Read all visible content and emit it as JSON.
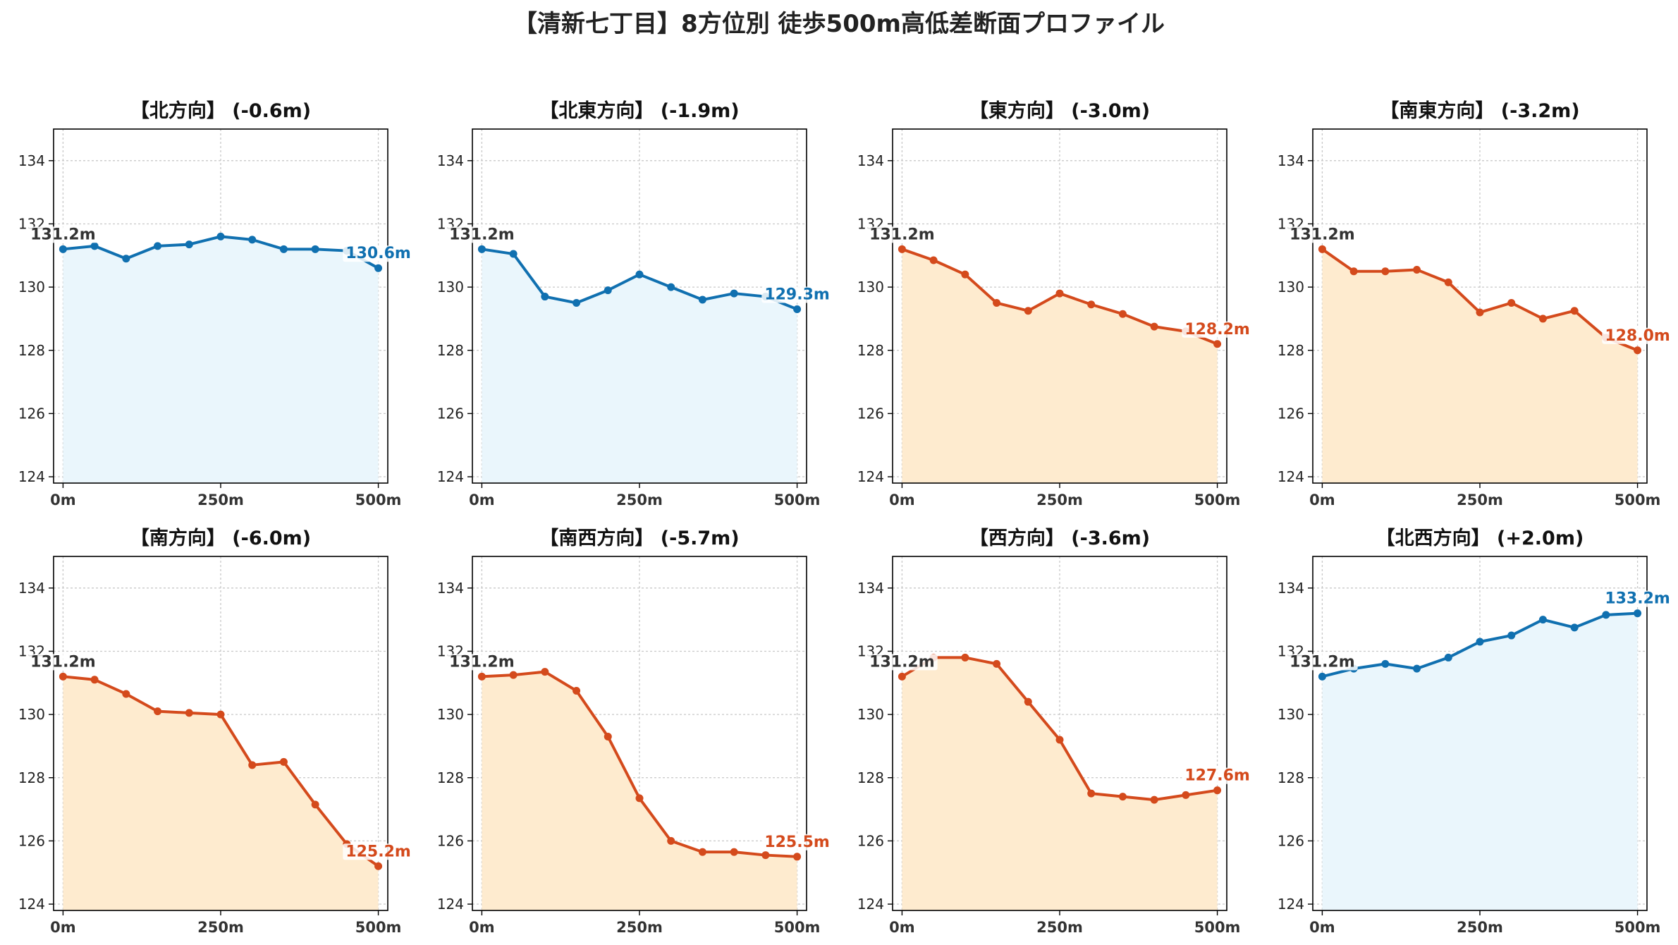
{
  "title": "【清新七丁目】8方位別 徒歩500m高低差断面プロファイル",
  "colors": {
    "up": "#1070b0",
    "down": "#d44a1c",
    "up_fill": "#eaf6fc",
    "down_fill": "#feebcf",
    "start_label": "#333333"
  },
  "chart_data": [
    {
      "type": "area",
      "title": "【北方向】 (-0.6m)",
      "x": [
        0,
        50,
        100,
        150,
        200,
        250,
        300,
        350,
        400,
        450,
        500
      ],
      "y": [
        131.2,
        131.3,
        130.9,
        131.3,
        131.35,
        131.6,
        131.5,
        131.2,
        131.2,
        131.15,
        130.6
      ],
      "start_label": "131.2m",
      "end_label": "130.6m",
      "trend": "up",
      "xticks": [
        "0m",
        "250m",
        "500m"
      ],
      "yticks": [
        124,
        126,
        128,
        130,
        132,
        134
      ],
      "ylim": [
        123.8,
        135
      ],
      "grid": true
    },
    {
      "type": "area",
      "title": "【北東方向】 (-1.9m)",
      "x": [
        0,
        50,
        100,
        150,
        200,
        250,
        300,
        350,
        400,
        450,
        500
      ],
      "y": [
        131.2,
        131.05,
        129.7,
        129.5,
        129.9,
        130.4,
        130.0,
        129.6,
        129.8,
        129.7,
        129.3
      ],
      "start_label": "131.2m",
      "end_label": "129.3m",
      "trend": "up",
      "xticks": [
        "0m",
        "250m",
        "500m"
      ],
      "yticks": [
        124,
        126,
        128,
        130,
        132,
        134
      ],
      "ylim": [
        123.8,
        135
      ],
      "grid": true
    },
    {
      "type": "area",
      "title": "【東方向】 (-3.0m)",
      "x": [
        0,
        50,
        100,
        150,
        200,
        250,
        300,
        350,
        400,
        450,
        500
      ],
      "y": [
        131.2,
        130.85,
        130.4,
        129.5,
        129.25,
        129.8,
        129.45,
        129.15,
        128.75,
        128.6,
        128.2
      ],
      "start_label": "131.2m",
      "end_label": "128.2m",
      "trend": "down",
      "xticks": [
        "0m",
        "250m",
        "500m"
      ],
      "yticks": [
        124,
        126,
        128,
        130,
        132,
        134
      ],
      "ylim": [
        123.8,
        135
      ],
      "grid": true
    },
    {
      "type": "area",
      "title": "【南東方向】 (-3.2m)",
      "x": [
        0,
        50,
        100,
        150,
        200,
        250,
        300,
        350,
        400,
        450,
        500
      ],
      "y": [
        131.2,
        130.5,
        130.5,
        130.55,
        130.15,
        129.2,
        129.5,
        129.0,
        129.25,
        128.4,
        128.0
      ],
      "start_label": "131.2m",
      "end_label": "128.0m",
      "trend": "down",
      "xticks": [
        "0m",
        "250m",
        "500m"
      ],
      "yticks": [
        124,
        126,
        128,
        130,
        132,
        134
      ],
      "ylim": [
        123.8,
        135
      ],
      "grid": true
    },
    {
      "type": "area",
      "title": "【南方向】 (-6.0m)",
      "x": [
        0,
        50,
        100,
        150,
        200,
        250,
        300,
        350,
        400,
        450,
        500
      ],
      "y": [
        131.2,
        131.1,
        130.65,
        130.1,
        130.05,
        130.0,
        128.4,
        128.5,
        127.15,
        125.9,
        125.2
      ],
      "start_label": "131.2m",
      "end_label": "125.2m",
      "trend": "down",
      "xticks": [
        "0m",
        "250m",
        "500m"
      ],
      "yticks": [
        124,
        126,
        128,
        130,
        132,
        134
      ],
      "ylim": [
        123.8,
        135
      ],
      "grid": true
    },
    {
      "type": "area",
      "title": "【南西方向】 (-5.7m)",
      "x": [
        0,
        50,
        100,
        150,
        200,
        250,
        300,
        350,
        400,
        450,
        500
      ],
      "y": [
        131.2,
        131.25,
        131.35,
        130.75,
        129.3,
        127.35,
        126.0,
        125.65,
        125.65,
        125.55,
        125.5
      ],
      "start_label": "131.2m",
      "end_label": "125.5m",
      "trend": "down",
      "xticks": [
        "0m",
        "250m",
        "500m"
      ],
      "yticks": [
        124,
        126,
        128,
        130,
        132,
        134
      ],
      "ylim": [
        123.8,
        135
      ],
      "grid": true
    },
    {
      "type": "area",
      "title": "【西方向】 (-3.6m)",
      "x": [
        0,
        50,
        100,
        150,
        200,
        250,
        300,
        350,
        400,
        450,
        500
      ],
      "y": [
        131.2,
        131.8,
        131.8,
        131.6,
        130.4,
        129.2,
        127.5,
        127.4,
        127.3,
        127.45,
        127.6
      ],
      "start_label": "131.2m",
      "end_label": "127.6m",
      "trend": "down",
      "xticks": [
        "0m",
        "250m",
        "500m"
      ],
      "yticks": [
        124,
        126,
        128,
        130,
        132,
        134
      ],
      "ylim": [
        123.8,
        135
      ],
      "grid": true
    },
    {
      "type": "area",
      "title": "【北西方向】 (+2.0m)",
      "x": [
        0,
        50,
        100,
        150,
        200,
        250,
        300,
        350,
        400,
        450,
        500
      ],
      "y": [
        131.2,
        131.45,
        131.6,
        131.45,
        131.8,
        132.3,
        132.5,
        133.0,
        132.75,
        133.15,
        133.2
      ],
      "start_label": "131.2m",
      "end_label": "133.2m",
      "trend": "up",
      "xticks": [
        "0m",
        "250m",
        "500m"
      ],
      "yticks": [
        124,
        126,
        128,
        130,
        132,
        134
      ],
      "ylim": [
        123.8,
        135
      ],
      "grid": true
    }
  ]
}
